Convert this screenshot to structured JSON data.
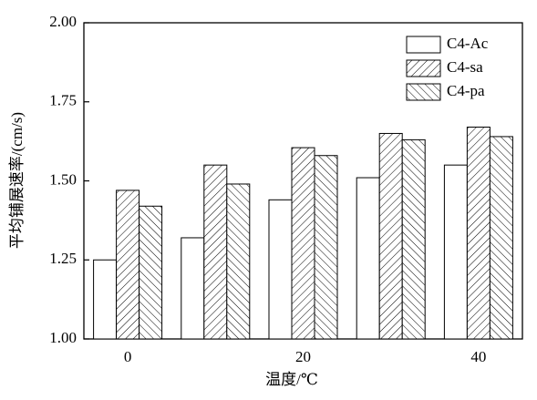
{
  "chart_data": {
    "type": "bar",
    "x_label": "温度/℃",
    "y_label": "平均铺展速率/(cm/s)",
    "categories": [
      "0",
      null,
      "20",
      null,
      "40"
    ],
    "series": [
      {
        "name": "C4-Ac",
        "color": "#ffffff",
        "hatch": "none",
        "values": [
          1.25,
          1.32,
          1.44,
          1.51,
          1.55
        ]
      },
      {
        "name": "C4-sa",
        "color": "#ffffff",
        "hatch": "forward",
        "values": [
          1.47,
          1.55,
          1.605,
          1.65,
          1.67
        ]
      },
      {
        "name": "C4-pa",
        "color": "#ffffff",
        "hatch": "backward",
        "values": [
          1.42,
          1.49,
          1.58,
          1.63,
          1.64
        ]
      }
    ],
    "ylim": [
      1.0,
      2.0
    ],
    "yticks": [
      {
        "value": 1.0,
        "label": "1.00"
      },
      {
        "value": 1.25,
        "label": "1.25"
      },
      {
        "value": 1.5,
        "label": "1.50"
      },
      {
        "value": 1.75,
        "label": "1.75"
      },
      {
        "value": 2.0,
        "label": "2.00"
      }
    ],
    "grid": false,
    "legend": "top-right"
  }
}
